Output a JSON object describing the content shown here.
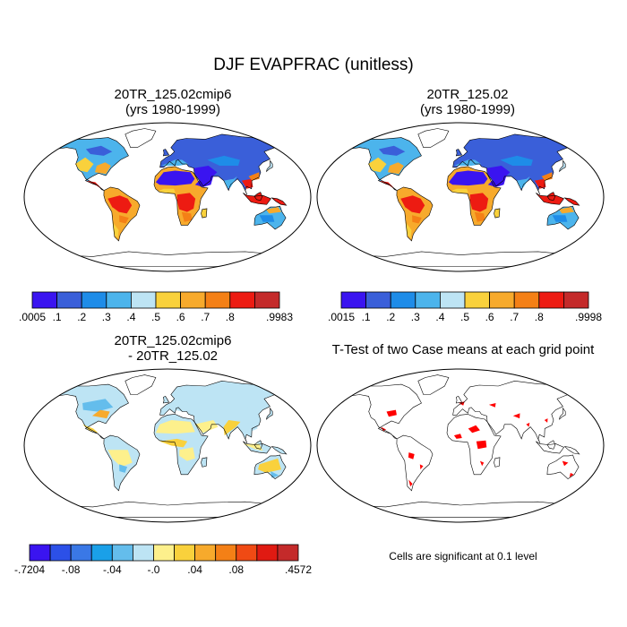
{
  "figure": {
    "title": "DJF EVAPFRAC (unitless)",
    "note": "Cells are significant at 0.1 level"
  },
  "chart_data": [
    {
      "type": "heatmap",
      "map_projection": "robinson",
      "title": "20TR_125.02cmip6\n(yrs 1980-1999)",
      "field": "EVAPFRAC",
      "season": "DJF",
      "colorbar": {
        "colors": [
          "#3a14f0",
          "#3a5fd9",
          "#1e8ce8",
          "#4cb4ec",
          "#bde4f4",
          "#f9d13c",
          "#f7aa2c",
          "#f48016",
          "#ed1b12",
          "#c42a2a"
        ],
        "tick_labels": [
          ".0005",
          ".1",
          ".2",
          ".3",
          ".4",
          ".5",
          ".6",
          ".7",
          ".8",
          ".9983"
        ]
      }
    },
    {
      "type": "heatmap",
      "map_projection": "robinson",
      "title": "20TR_125.02\n(yrs 1980-1999)",
      "field": "EVAPFRAC",
      "season": "DJF",
      "colorbar": {
        "colors": [
          "#3a14f0",
          "#3a5fd9",
          "#1e8ce8",
          "#4cb4ec",
          "#bde4f4",
          "#f9d13c",
          "#f7aa2c",
          "#f48016",
          "#ed1b12",
          "#c42a2a"
        ],
        "tick_labels": [
          ".0015",
          ".1",
          ".2",
          ".3",
          ".4",
          ".5",
          ".6",
          ".7",
          ".8",
          ".9998"
        ]
      }
    },
    {
      "type": "heatmap",
      "map_projection": "robinson",
      "title": "20TR_125.02cmip6\n- 20TR_125.02",
      "field": "EVAPFRAC difference",
      "colorbar": {
        "colors": [
          "#3a14f0",
          "#2c50e8",
          "#3a78e6",
          "#1aa0e8",
          "#64bdec",
          "#bde4f4",
          "#fdf08c",
          "#f9d13c",
          "#f7aa2c",
          "#f48016",
          "#f04a14",
          "#e01a12",
          "#c42a2a"
        ],
        "tick_labels": [
          "-.7204",
          "-.08",
          "-.04",
          "-.0",
          ".04",
          ".08",
          ".4572"
        ]
      }
    },
    {
      "type": "heatmap",
      "map_projection": "robinson",
      "title": "T-Test of two Case means at each grid point",
      "significance_level": 0.1,
      "significant_color": "#ff0000"
    }
  ]
}
